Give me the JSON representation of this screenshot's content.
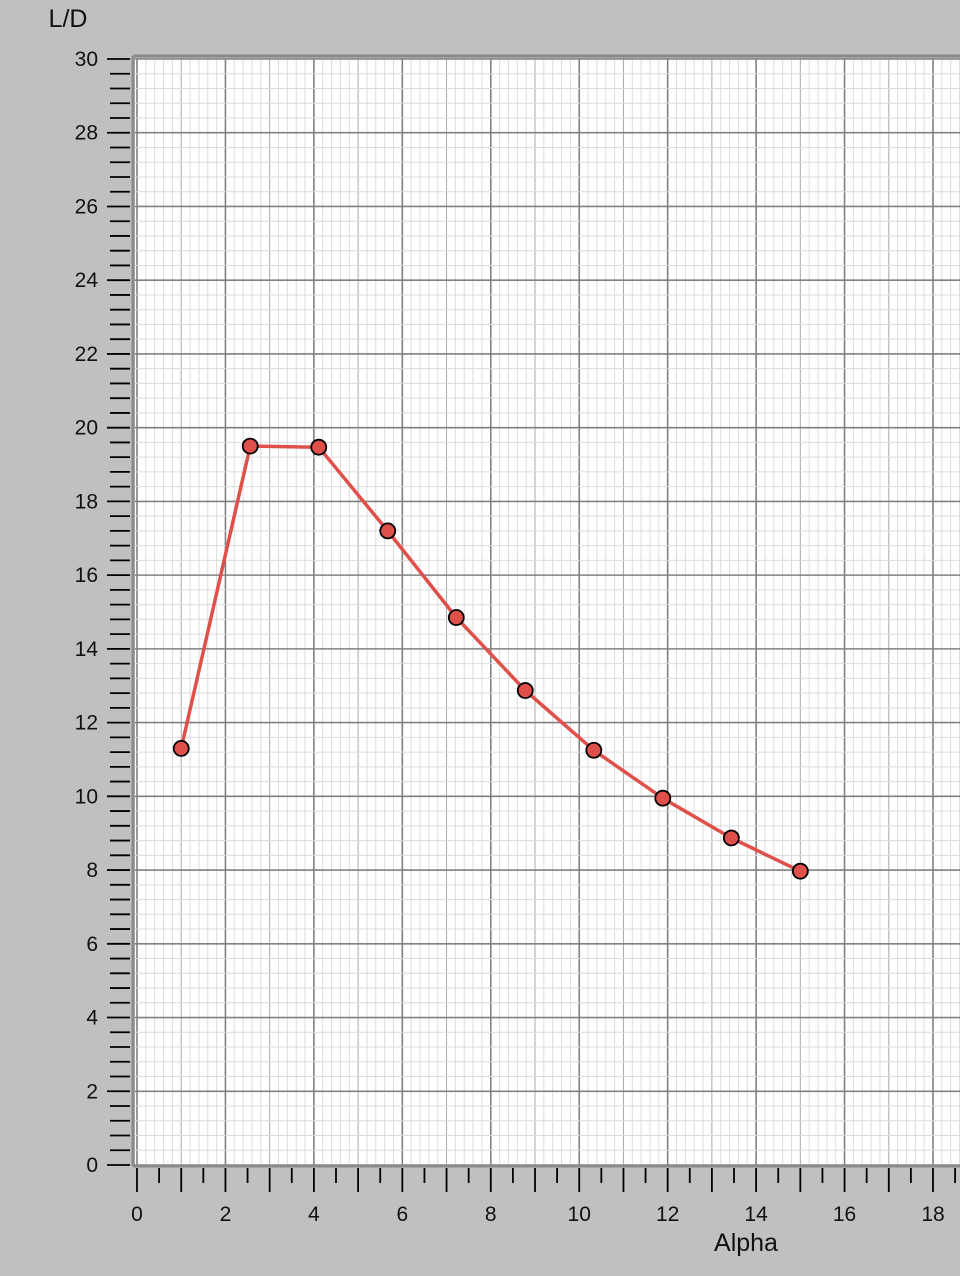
{
  "chart_data": {
    "type": "line",
    "title": "",
    "xlabel": "Alpha",
    "ylabel": "L/D",
    "xlim": [
      0,
      18
    ],
    "ylim": [
      0,
      30
    ],
    "xticks": [
      "0",
      "2",
      "4",
      "6",
      "8",
      "10",
      "12",
      "14",
      "16",
      "18"
    ],
    "yticks": [
      "0",
      "2",
      "4",
      "6",
      "8",
      "10",
      "12",
      "14",
      "16",
      "18",
      "20",
      "22",
      "24",
      "26",
      "28",
      "30"
    ],
    "grid": true,
    "series": [
      {
        "name": "",
        "color": "#e0504a",
        "marker_color": "#e0504a",
        "x": [
          1.0,
          2.56,
          4.11,
          5.67,
          7.22,
          8.78,
          10.33,
          11.89,
          13.44,
          15.0
        ],
        "y": [
          11.3,
          19.5,
          19.47,
          17.2,
          14.85,
          12.87,
          11.25,
          9.95,
          8.87,
          7.97
        ]
      }
    ]
  }
}
